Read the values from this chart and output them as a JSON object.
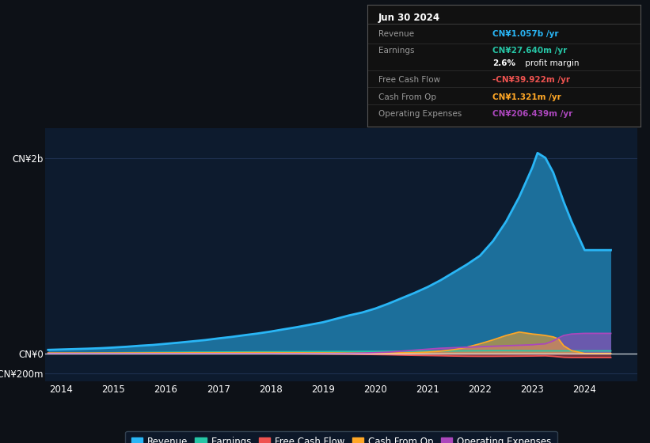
{
  "background_color": "#0d1117",
  "plot_bg_color": "#0d1b2e",
  "colors": {
    "revenue": "#29b6f6",
    "earnings": "#26c6a6",
    "free_cash_flow": "#ef5350",
    "cash_from_op": "#ffa726",
    "operating_expenses": "#ab47bc"
  },
  "x_min": 2013.7,
  "x_max": 2025.0,
  "y_min": -280000000,
  "y_max": 2300000000,
  "yticks": [
    -200000000,
    0,
    2000000000
  ],
  "ytick_labels": [
    "-CN¥200m",
    "CN¥0",
    "CN¥2b"
  ],
  "xticks": [
    2014,
    2015,
    2016,
    2017,
    2018,
    2019,
    2020,
    2021,
    2022,
    2023,
    2024
  ],
  "legend_items": [
    {
      "label": "Revenue",
      "color": "#29b6f6"
    },
    {
      "label": "Earnings",
      "color": "#26c6a6"
    },
    {
      "label": "Free Cash Flow",
      "color": "#ef5350"
    },
    {
      "label": "Cash From Op",
      "color": "#ffa726"
    },
    {
      "label": "Operating Expenses",
      "color": "#ab47bc"
    }
  ],
  "info_box_title": "Jun 30 2024",
  "info_rows": [
    {
      "label": "Revenue",
      "value": "CN¥1.057b /yr",
      "color": "#29b6f6"
    },
    {
      "label": "Earnings",
      "value": "CN¥27.640m /yr",
      "color": "#26c6a6"
    },
    {
      "label": "",
      "value": "2.6%",
      "value2": " profit margin",
      "color": "#ffffff"
    },
    {
      "label": "Free Cash Flow",
      "value": "-CN¥39.922m /yr",
      "color": "#ef5350"
    },
    {
      "label": "Cash From Op",
      "value": "CN¥1.321m /yr",
      "color": "#ffa726"
    },
    {
      "label": "Operating Expenses",
      "value": "CN¥206.439m /yr",
      "color": "#ab47bc"
    }
  ]
}
